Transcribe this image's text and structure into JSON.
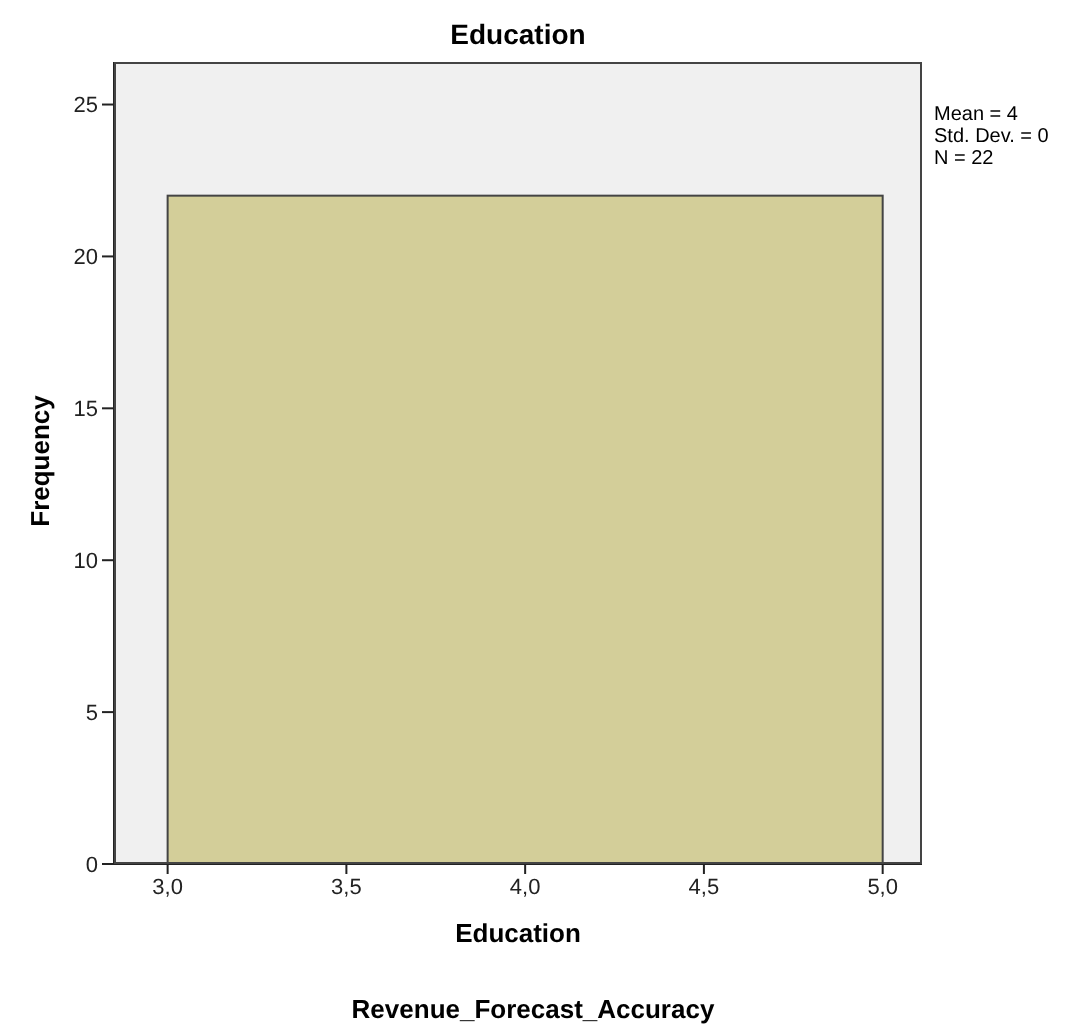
{
  "chart_data": {
    "type": "histogram",
    "title": "Education",
    "xlabel": "Education",
    "ylabel": "Frequency",
    "bins": [
      3,
      5
    ],
    "values": [
      22
    ],
    "color": "#d3ce99",
    "xlim": [
      2.85,
      5.11
    ],
    "xticks": [
      {
        "value": 3,
        "label": "3,0"
      },
      {
        "value": 3.5,
        "label": "3,5"
      },
      {
        "value": 4,
        "label": "4,0"
      },
      {
        "value": 4.5,
        "label": "4,5"
      },
      {
        "value": 5,
        "label": "5,0"
      }
    ],
    "ylim": [
      0,
      26.4
    ],
    "yticks": [
      0,
      5,
      10,
      15,
      20,
      25
    ],
    "annotations": [
      "Mean = 4",
      "Std. Dev. = 0",
      "N = 22",
      "Revenue_Forecast_Accuracy"
    ]
  }
}
